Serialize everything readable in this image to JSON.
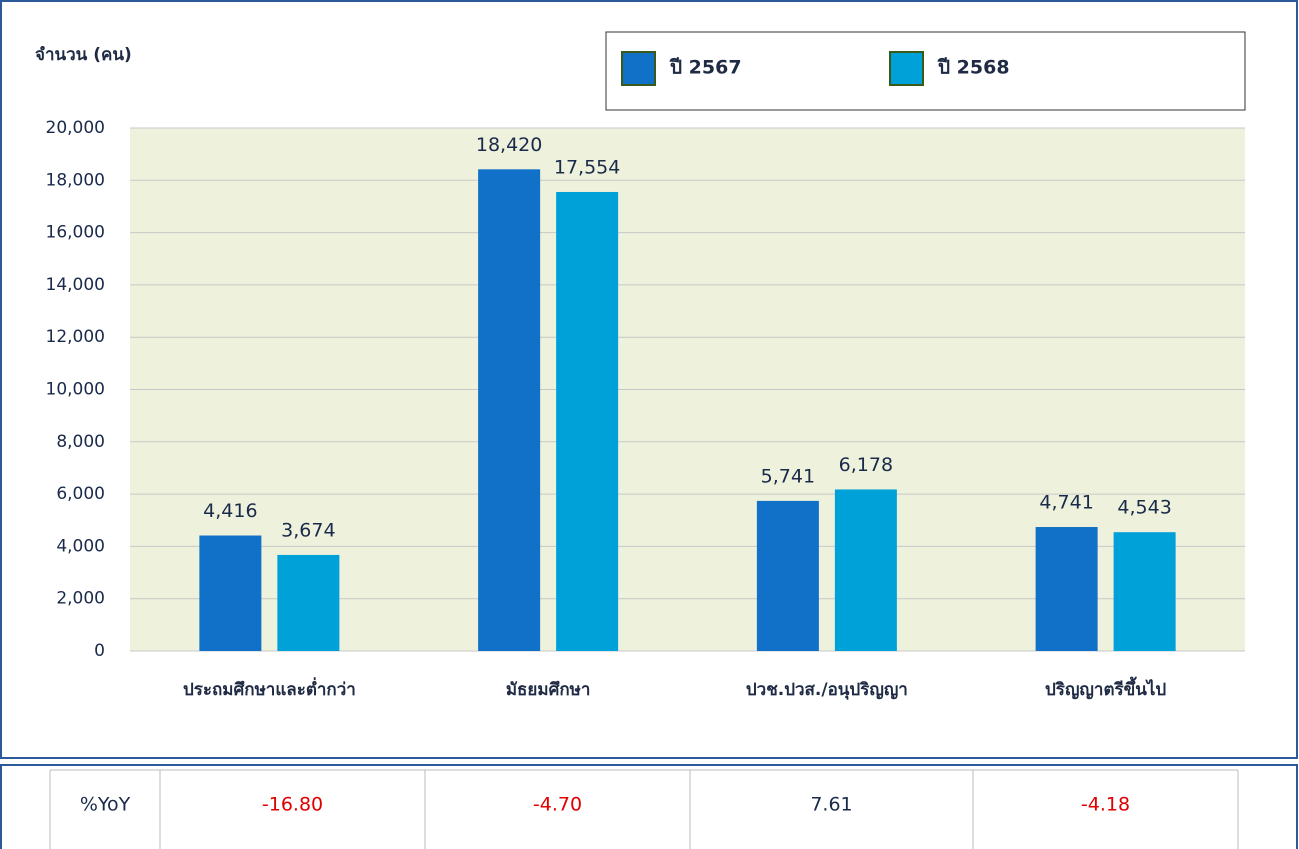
{
  "chart_data": {
    "type": "bar",
    "ylabel": "จำนวน (คน)",
    "categories": [
      "ประถมศึกษาและต่ำกว่า",
      "มัธยมศึกษา",
      "ปวช.ปวส./อนุปริญญา",
      "ปริญญาตรีขึ้นไป"
    ],
    "series": [
      {
        "name": "ปี 2567",
        "color": "#1170c8",
        "values": [
          4416,
          18420,
          5741,
          4741
        ],
        "value_labels": [
          "4,416",
          "18,420",
          "5,741",
          "4,741"
        ]
      },
      {
        "name": "ปี 2568",
        "color": "#00a0d8",
        "values": [
          3674,
          17554,
          6178,
          4543
        ],
        "value_labels": [
          "3,674",
          "17,554",
          "6,178",
          "4,543"
        ]
      }
    ],
    "ylim": [
      0,
      20000
    ],
    "yticks": [
      0,
      {
        "value": 2000,
        "label": "2,000"
      },
      {
        "value": 4000,
        "label": "4,000"
      },
      {
        "value": 6000,
        "label": "6,000"
      },
      {
        "value": 8000,
        "label": "8,000"
      },
      {
        "value": 10000,
        "label": "10,000"
      },
      {
        "value": 12000,
        "label": "12,000"
      },
      {
        "value": 14000,
        "label": "14,000"
      },
      {
        "value": 16000,
        "label": "16,000"
      },
      {
        "value": 18000,
        "label": "18,000"
      },
      {
        "value": 20000,
        "label": "20,000"
      }
    ],
    "grid": true,
    "legend": "top-right"
  },
  "table": {
    "rows": [
      [
        "%YoY",
        "-16.80",
        "-4.70",
        "7.61",
        "-4.18"
      ]
    ]
  }
}
